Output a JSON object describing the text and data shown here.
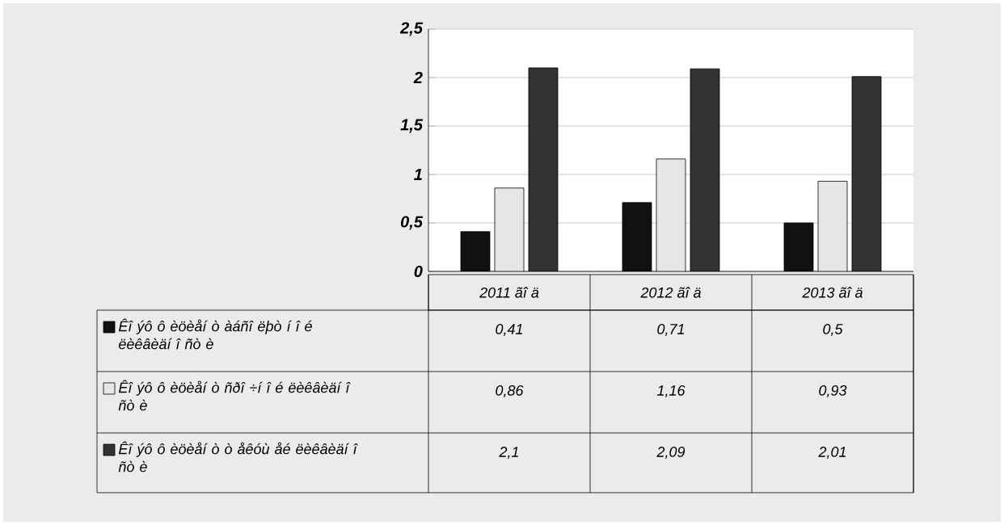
{
  "chart_data": {
    "type": "bar",
    "categories": [
      "2011 ãî ä",
      "2012 ãî ä",
      "2013 ãî ä"
    ],
    "series": [
      {
        "name": "Êî ýô ô èöèåí ò àáñî ëþò í î é ëèêâèäí î ñò è",
        "color": "#111111",
        "values": [
          0.41,
          0.71,
          0.5
        ],
        "value_labels": [
          "0,41",
          "0,71",
          "0,5"
        ]
      },
      {
        "name": "Êî ýô ô èöèåí ò ñðî ÷í î é ëèêâèäí î ñò è",
        "color": "#e6e6e6",
        "values": [
          0.86,
          1.16,
          0.93
        ],
        "value_labels": [
          "0,86",
          "1,16",
          "0,93"
        ]
      },
      {
        "name": "Êî ýô ô èöèåí ò ò åêóù åé ëèêâèäí î ñò è",
        "color": "#333333",
        "values": [
          2.1,
          2.09,
          2.01
        ],
        "value_labels": [
          "2,1",
          "2,09",
          "2,01"
        ]
      }
    ],
    "ylim": [
      0,
      2.5
    ],
    "yticks": [
      0,
      {
        "value": 0.5,
        "label": "0,5"
      },
      1,
      {
        "value": 1.5,
        "label": "1,5"
      },
      2,
      {
        "value": 2.5,
        "label": "2,5"
      }
    ],
    "grid": "y",
    "legend": "bottom"
  }
}
